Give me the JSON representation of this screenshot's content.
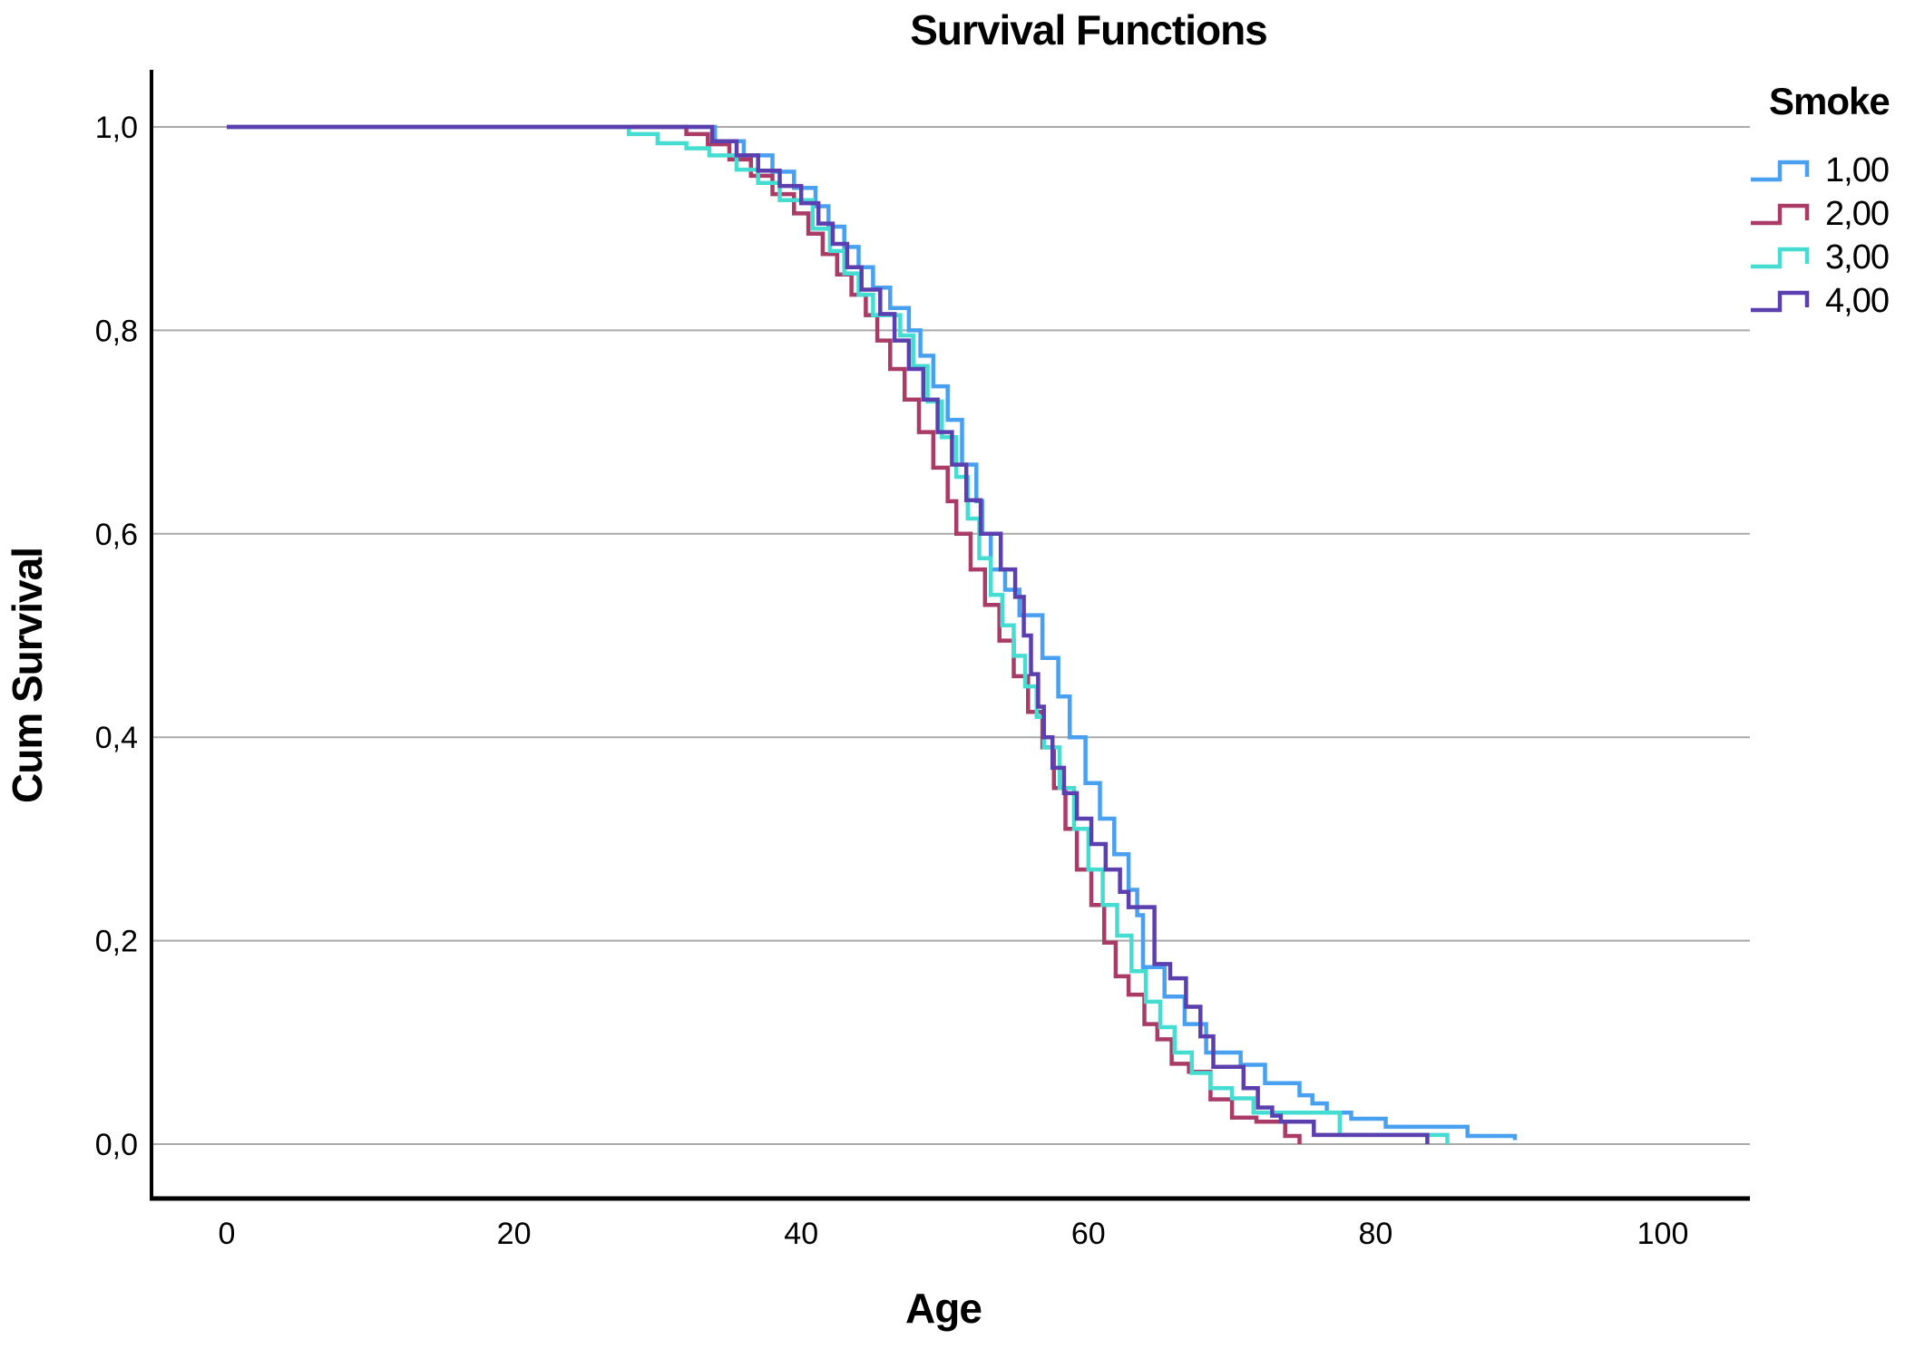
{
  "chart_data": {
    "type": "line",
    "subtype": "step-survival",
    "title": "Survival Functions",
    "xlabel": "Age",
    "ylabel": "Cum Survival",
    "grid": "horizontal",
    "xlim": [
      -5.2,
      106.1
    ],
    "ylim": [
      -0.054,
      1.056
    ],
    "x_ticks": [
      {
        "value": 0,
        "label": "0"
      },
      {
        "value": 20,
        "label": "20"
      },
      {
        "value": 40,
        "label": "40"
      },
      {
        "value": 60,
        "label": "60"
      },
      {
        "value": 80,
        "label": "80"
      },
      {
        "value": 100,
        "label": "100"
      }
    ],
    "y_ticks": [
      {
        "value": 1.0,
        "label": "1,0"
      },
      {
        "value": 0.8,
        "label": "0,8"
      },
      {
        "value": 0.6,
        "label": "0,6"
      },
      {
        "value": 0.4,
        "label": "0,4"
      },
      {
        "value": 0.2,
        "label": "0,2"
      },
      {
        "value": 0.0,
        "label": "0,0"
      }
    ],
    "legend": {
      "title": "Smoke",
      "position": "top-right"
    },
    "colors": {
      "background": "#FFFFFF",
      "grid": "#A9A9A9",
      "axis": "#000000",
      "text": "#000000"
    },
    "series": [
      {
        "name": "1,00",
        "color": "#49A0F0",
        "points": [
          [
            0,
            1.0
          ],
          [
            34,
            0.986
          ],
          [
            36,
            0.972
          ],
          [
            38,
            0.956
          ],
          [
            39.5,
            0.94
          ],
          [
            41,
            0.922
          ],
          [
            41.9,
            0.902
          ],
          [
            43,
            0.882
          ],
          [
            44,
            0.862
          ],
          [
            45,
            0.842
          ],
          [
            46.2,
            0.822
          ],
          [
            47.5,
            0.8
          ],
          [
            48.3,
            0.775
          ],
          [
            49.2,
            0.745
          ],
          [
            50.2,
            0.712
          ],
          [
            51.2,
            0.668
          ],
          [
            52.2,
            0.632
          ],
          [
            52.6,
            0.6
          ],
          [
            53.2,
            0.565
          ],
          [
            54.2,
            0.545
          ],
          [
            55.2,
            0.52
          ],
          [
            56.8,
            0.478
          ],
          [
            57.9,
            0.44
          ],
          [
            58.7,
            0.4
          ],
          [
            59.8,
            0.355
          ],
          [
            60.8,
            0.32
          ],
          [
            61.8,
            0.285
          ],
          [
            62.8,
            0.25
          ],
          [
            63.4,
            0.225
          ],
          [
            63.8,
            0.174
          ],
          [
            65.3,
            0.145
          ],
          [
            66.7,
            0.118
          ],
          [
            68.2,
            0.09
          ],
          [
            70.6,
            0.078
          ],
          [
            72.3,
            0.06
          ],
          [
            74.7,
            0.048
          ],
          [
            75.6,
            0.04
          ],
          [
            76.6,
            0.031
          ],
          [
            78.3,
            0.025
          ],
          [
            80.7,
            0.017
          ],
          [
            86.4,
            0.008
          ],
          [
            89.7,
            0.004
          ]
        ]
      },
      {
        "name": "2,00",
        "color": "#A93B66",
        "points": [
          [
            0,
            1.0
          ],
          [
            32,
            0.993
          ],
          [
            33.5,
            0.983
          ],
          [
            35,
            0.968
          ],
          [
            36.5,
            0.952
          ],
          [
            38,
            0.934
          ],
          [
            39.5,
            0.915
          ],
          [
            40.5,
            0.895
          ],
          [
            41.5,
            0.875
          ],
          [
            42.5,
            0.855
          ],
          [
            43.5,
            0.835
          ],
          [
            44.5,
            0.815
          ],
          [
            45.3,
            0.79
          ],
          [
            46.2,
            0.762
          ],
          [
            47.2,
            0.732
          ],
          [
            48.2,
            0.7
          ],
          [
            49.2,
            0.665
          ],
          [
            50.2,
            0.632
          ],
          [
            50.8,
            0.6
          ],
          [
            51.8,
            0.565
          ],
          [
            52.8,
            0.53
          ],
          [
            53.8,
            0.495
          ],
          [
            54.8,
            0.46
          ],
          [
            55.8,
            0.425
          ],
          [
            56.8,
            0.39
          ],
          [
            57.6,
            0.35
          ],
          [
            58.4,
            0.31
          ],
          [
            59.2,
            0.27
          ],
          [
            60.2,
            0.235
          ],
          [
            61.1,
            0.198
          ],
          [
            61.9,
            0.165
          ],
          [
            62.8,
            0.147
          ],
          [
            63.9,
            0.118
          ],
          [
            64.8,
            0.103
          ],
          [
            65.8,
            0.079
          ],
          [
            67,
            0.071
          ],
          [
            68.5,
            0.044
          ],
          [
            70,
            0.026
          ],
          [
            71.7,
            0.022
          ],
          [
            73.7,
            0.008
          ],
          [
            74.7,
            0
          ]
        ]
      },
      {
        "name": "3,00",
        "color": "#45DDD2",
        "points": [
          [
            0,
            1.0
          ],
          [
            28,
            0.993
          ],
          [
            30,
            0.984
          ],
          [
            32,
            0.979
          ],
          [
            33.6,
            0.972
          ],
          [
            35.5,
            0.958
          ],
          [
            37,
            0.945
          ],
          [
            38.5,
            0.928
          ],
          [
            40.8,
            0.9
          ],
          [
            42,
            0.878
          ],
          [
            43,
            0.856
          ],
          [
            44,
            0.835
          ],
          [
            45,
            0.815
          ],
          [
            46.9,
            0.795
          ],
          [
            47.8,
            0.765
          ],
          [
            48.8,
            0.73
          ],
          [
            49.8,
            0.695
          ],
          [
            50.8,
            0.656
          ],
          [
            51.6,
            0.615
          ],
          [
            52.4,
            0.576
          ],
          [
            53.2,
            0.54
          ],
          [
            54,
            0.51
          ],
          [
            54.8,
            0.48
          ],
          [
            55.6,
            0.45
          ],
          [
            56.4,
            0.42
          ],
          [
            56.9,
            0.39
          ],
          [
            58,
            0.35
          ],
          [
            59,
            0.31
          ],
          [
            60,
            0.27
          ],
          [
            61,
            0.235
          ],
          [
            62,
            0.205
          ],
          [
            63,
            0.17
          ],
          [
            64,
            0.14
          ],
          [
            65,
            0.115
          ],
          [
            66,
            0.09
          ],
          [
            67.2,
            0.07
          ],
          [
            68.5,
            0.055
          ],
          [
            70,
            0.045
          ],
          [
            71.5,
            0.031
          ],
          [
            77.5,
            0.009
          ],
          [
            85,
            0
          ]
        ]
      },
      {
        "name": "4,00",
        "color": "#5C3FAE",
        "points": [
          [
            0,
            1.0
          ],
          [
            33.8,
            0.986
          ],
          [
            35.5,
            0.972
          ],
          [
            37,
            0.957
          ],
          [
            38.5,
            0.942
          ],
          [
            40,
            0.925
          ],
          [
            41.2,
            0.905
          ],
          [
            42.2,
            0.885
          ],
          [
            43.2,
            0.862
          ],
          [
            44.2,
            0.84
          ],
          [
            45.5,
            0.816
          ],
          [
            46.5,
            0.79
          ],
          [
            47.5,
            0.762
          ],
          [
            48.5,
            0.732
          ],
          [
            49.5,
            0.7
          ],
          [
            50.5,
            0.668
          ],
          [
            51.5,
            0.633
          ],
          [
            52.5,
            0.6
          ],
          [
            53.9,
            0.565
          ],
          [
            54.9,
            0.538
          ],
          [
            55.5,
            0.5
          ],
          [
            56,
            0.462
          ],
          [
            56.5,
            0.43
          ],
          [
            56.9,
            0.4
          ],
          [
            57.5,
            0.37
          ],
          [
            58.3,
            0.345
          ],
          [
            59.2,
            0.32
          ],
          [
            60.2,
            0.295
          ],
          [
            61.2,
            0.27
          ],
          [
            62.2,
            0.248
          ],
          [
            62.8,
            0.233
          ],
          [
            64.6,
            0.177
          ],
          [
            65.7,
            0.163
          ],
          [
            66.8,
            0.135
          ],
          [
            67.8,
            0.106
          ],
          [
            68.7,
            0.076
          ],
          [
            70.8,
            0.055
          ],
          [
            71.8,
            0.036
          ],
          [
            72.8,
            0.028
          ],
          [
            73.4,
            0.022
          ],
          [
            75.7,
            0.009
          ],
          [
            83.6,
            0
          ]
        ]
      }
    ]
  }
}
